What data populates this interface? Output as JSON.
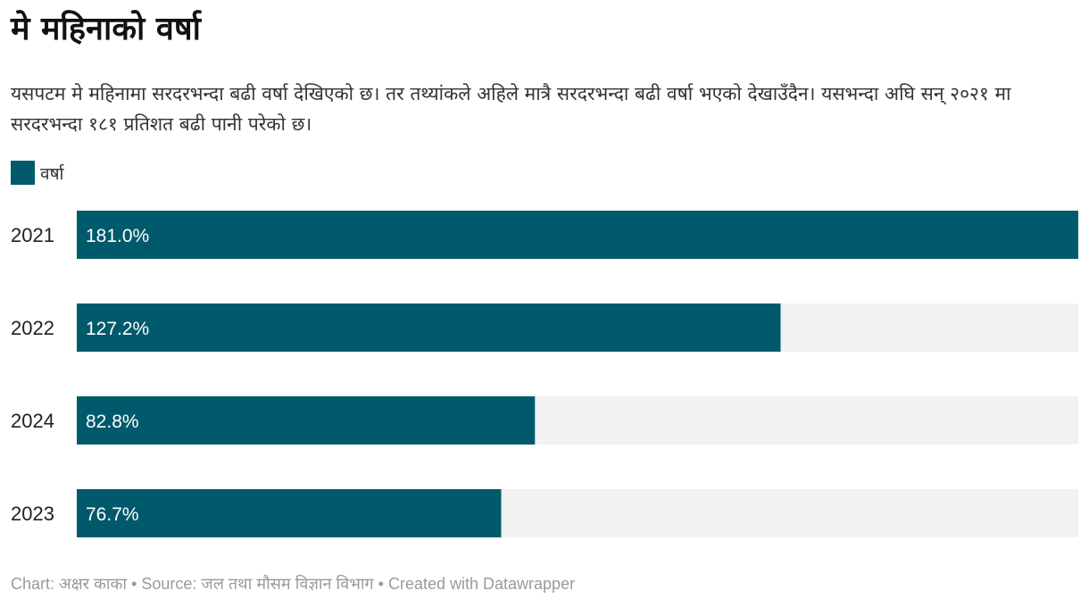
{
  "title": "मे महिनाको वर्षा",
  "description": "यसपटम मे महिनामा सरदरभन्दा बढी वर्षा देखिएको छ। तर तथ्यांकले अहिले मात्रै सरदरभन्दा बढी वर्षा भएको देखाउँदैन। यसभन्दा अघि सन् २०२१ मा सरदरभन्दा १८१ प्रतिशत बढी पानी परेको छ।",
  "colors": {
    "bar": "#005a6b",
    "track": "#f2f2f2"
  },
  "footer": "Chart: अक्षर काका • Source: जल तथा मौसम विज्ञान विभाग • Created with Datawrapper",
  "chart_data": {
    "type": "bar",
    "orientation": "horizontal",
    "legend": "top-left",
    "categories": [
      "2021",
      "2022",
      "2024",
      "2023"
    ],
    "series": [
      {
        "name": "वर्षा",
        "values": [
          181.0,
          127.2,
          82.8,
          76.7
        ],
        "labels": [
          "181.0%",
          "127.2%",
          "82.8%",
          "76.7%"
        ]
      }
    ],
    "xlim": [
      0,
      181.0
    ],
    "grid": false
  }
}
